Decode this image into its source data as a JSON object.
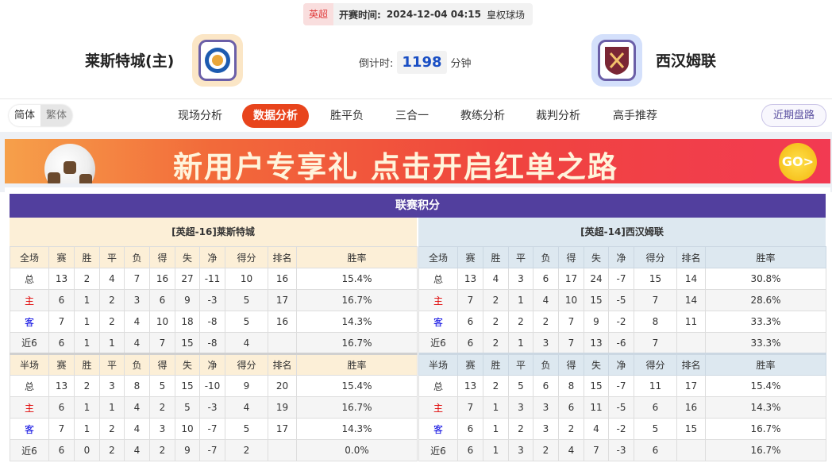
{
  "match": {
    "league": "英超",
    "time_label": "开赛时间:",
    "time": "2024-12-04 04:15",
    "venue": "皇权球场",
    "home_team": "莱斯特城(主)",
    "away_team": "西汉姆联",
    "countdown_label": "倒计时:",
    "countdown_value": "1198",
    "countdown_unit": "分钟"
  },
  "lang": {
    "simplified": "简体",
    "traditional": "繁体"
  },
  "nav": {
    "tabs": [
      {
        "label": "现场分析",
        "active": false
      },
      {
        "label": "数据分析",
        "active": true
      },
      {
        "label": "胜平负",
        "active": false
      },
      {
        "label": "三合一",
        "active": false
      },
      {
        "label": "教练分析",
        "active": false
      },
      {
        "label": "裁判分析",
        "active": false
      },
      {
        "label": "高手推荐",
        "active": false
      }
    ],
    "recent_button": "近期盘路"
  },
  "banner": {
    "text": "新用户专享礼  点击开启红单之路",
    "go": "GO>"
  },
  "colors": {
    "accent": "#e8441c",
    "table_title": "#523f9e",
    "home_header": "#fcefd7",
    "away_header": "#dde8f0",
    "countdown": "#1a4fc4"
  },
  "standings": {
    "title": "联赛积分",
    "columns": [
      "赛",
      "胜",
      "平",
      "负",
      "得",
      "失",
      "净",
      "得分",
      "排名",
      "胜率"
    ],
    "sections_labels": [
      "全场",
      "半场"
    ],
    "home": {
      "header": "[英超-16]莱斯特城",
      "full": [
        [
          "总",
          "13",
          "2",
          "4",
          "7",
          "16",
          "27",
          "-11",
          "10",
          "16",
          "15.4%"
        ],
        [
          "主",
          "6",
          "1",
          "2",
          "3",
          "6",
          "9",
          "-3",
          "5",
          "17",
          "16.7%"
        ],
        [
          "客",
          "7",
          "1",
          "2",
          "4",
          "10",
          "18",
          "-8",
          "5",
          "16",
          "14.3%"
        ],
        [
          "近6",
          "6",
          "1",
          "1",
          "4",
          "7",
          "15",
          "-8",
          "4",
          "",
          "16.7%"
        ]
      ],
      "half": [
        [
          "总",
          "13",
          "2",
          "3",
          "8",
          "5",
          "15",
          "-10",
          "9",
          "20",
          "15.4%"
        ],
        [
          "主",
          "6",
          "1",
          "1",
          "4",
          "2",
          "5",
          "-3",
          "4",
          "19",
          "16.7%"
        ],
        [
          "客",
          "7",
          "1",
          "2",
          "4",
          "3",
          "10",
          "-7",
          "5",
          "17",
          "14.3%"
        ],
        [
          "近6",
          "6",
          "0",
          "2",
          "4",
          "2",
          "9",
          "-7",
          "2",
          "",
          "0.0%"
        ]
      ]
    },
    "away": {
      "header": "[英超-14]西汉姆联",
      "full": [
        [
          "总",
          "13",
          "4",
          "3",
          "6",
          "17",
          "24",
          "-7",
          "15",
          "14",
          "30.8%"
        ],
        [
          "主",
          "7",
          "2",
          "1",
          "4",
          "10",
          "15",
          "-5",
          "7",
          "14",
          "28.6%"
        ],
        [
          "客",
          "6",
          "2",
          "2",
          "2",
          "7",
          "9",
          "-2",
          "8",
          "11",
          "33.3%"
        ],
        [
          "近6",
          "6",
          "2",
          "1",
          "3",
          "7",
          "13",
          "-6",
          "7",
          "",
          "33.3%"
        ]
      ],
      "half": [
        [
          "总",
          "13",
          "2",
          "5",
          "6",
          "8",
          "15",
          "-7",
          "11",
          "17",
          "15.4%"
        ],
        [
          "主",
          "7",
          "1",
          "3",
          "3",
          "6",
          "11",
          "-5",
          "6",
          "16",
          "14.3%"
        ],
        [
          "客",
          "6",
          "1",
          "2",
          "3",
          "2",
          "4",
          "-2",
          "5",
          "15",
          "16.7%"
        ],
        [
          "近6",
          "6",
          "1",
          "3",
          "2",
          "4",
          "7",
          "-3",
          "6",
          "",
          "16.7%"
        ]
      ]
    }
  }
}
